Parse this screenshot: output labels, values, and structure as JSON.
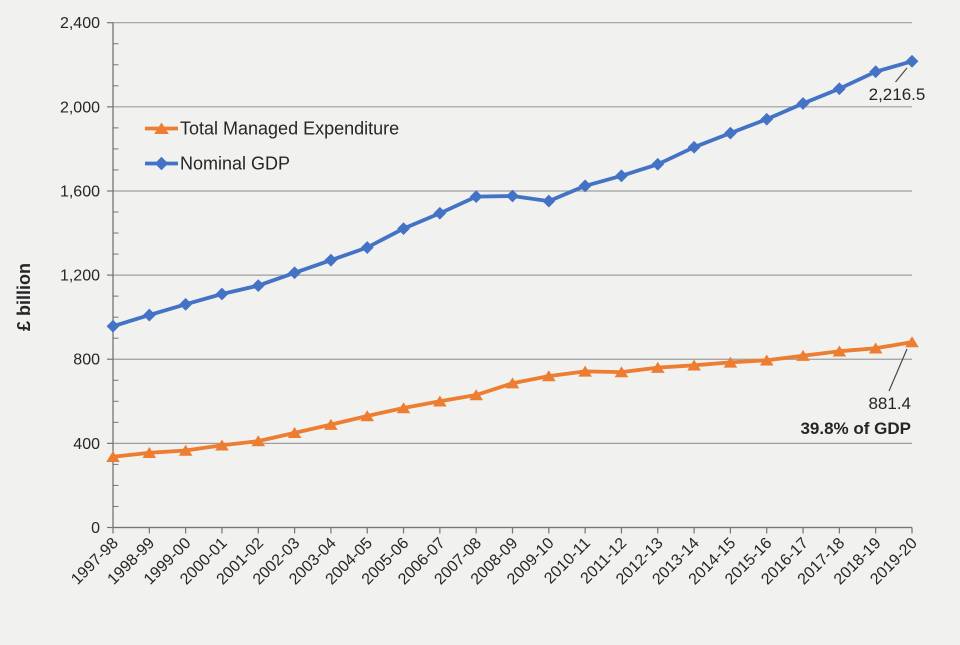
{
  "colors": {
    "background": "#f1f1f0",
    "tme_orange": "#ED7D31",
    "gdp_blue": "#4472C4",
    "gridline": "#9e9e9e",
    "axis": "#757575",
    "text": "#262626"
  },
  "chart_data": {
    "type": "line",
    "xlabel": "",
    "ylabel": "£ billion",
    "ylim": [
      0,
      2400
    ],
    "ytick_interval": 400,
    "ytick_minor_interval": 100,
    "ytick_labels": [
      "0",
      "400",
      "800",
      "1,200",
      "1,600",
      "2,000",
      "2,400"
    ],
    "grid": "horizontal",
    "legend_position": "inside-top-left",
    "categories": [
      "1997-98",
      "1998-99",
      "1999-00",
      "2000-01",
      "2001-02",
      "2002-03",
      "2003-04",
      "2004-05",
      "2005-06",
      "2006-07",
      "2007-08",
      "2008-09",
      "2009-10",
      "2010-11",
      "2011-12",
      "2012-13",
      "2013-14",
      "2014-15",
      "2015-16",
      "2016-17",
      "2017-18",
      "2018-19",
      "2019-20"
    ],
    "series": [
      {
        "id": "tme",
        "name": "Total Managed Expenditure",
        "color": "#ED7D31",
        "marker": "triangle",
        "values": [
          336,
          355,
          366,
          391,
          411,
          450,
          489,
          530,
          568,
          600,
          630,
          686,
          720,
          742,
          739,
          760,
          771,
          785,
          795,
          817,
          838,
          852,
          881.4
        ]
      },
      {
        "id": "gdp",
        "name": "Nominal GDP",
        "color": "#4472C4",
        "marker": "diamond",
        "values": [
          957,
          1010,
          1061,
          1110,
          1150,
          1211,
          1271,
          1331,
          1421,
          1494,
          1573,
          1576,
          1552,
          1624,
          1672,
          1727,
          1808,
          1875,
          1941,
          2016,
          2086,
          2167,
          2216.5
        ]
      }
    ],
    "annotations": [
      {
        "text": "2,216.5",
        "series": "Nominal GDP",
        "category": "2019-20",
        "style": "regular"
      },
      {
        "text": "881.4",
        "series": "Total Managed Expenditure",
        "category": "2019-20",
        "style": "regular"
      },
      {
        "text": "39.8% of GDP",
        "series": "Total Managed Expenditure",
        "category": "2019-20",
        "style": "bold"
      }
    ]
  }
}
